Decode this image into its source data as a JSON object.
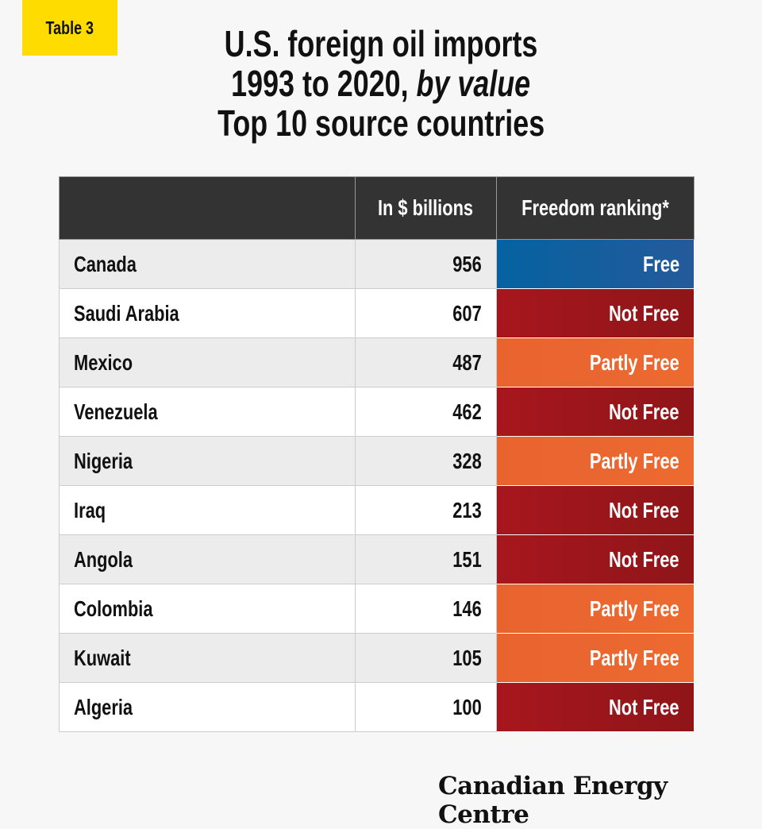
{
  "badge": "Table 3",
  "title": {
    "line1": "U.S. foreign oil imports",
    "line2_plain": "1993 to 2020, ",
    "line2_italic": "by value",
    "line3": "Top 10 source countries"
  },
  "colors": {
    "Free": "#0b5f9f",
    "Not Free": "#a3171d",
    "Partly Free": "#e9632f",
    "header": "#333333",
    "badge": "#fedc00"
  },
  "chart_data": {
    "type": "table",
    "columns": [
      "",
      "In $ billions",
      "Freedom ranking*"
    ],
    "rows": [
      {
        "country": "Canada",
        "value": "956",
        "ranking": "Free"
      },
      {
        "country": "Saudi Arabia",
        "value": "607",
        "ranking": "Not Free"
      },
      {
        "country": "Mexico",
        "value": "487",
        "ranking": "Partly Free"
      },
      {
        "country": "Venezuela",
        "value": "462",
        "ranking": "Not Free"
      },
      {
        "country": "Nigeria",
        "value": "328",
        "ranking": "Partly Free"
      },
      {
        "country": "Iraq",
        "value": "213",
        "ranking": "Not Free"
      },
      {
        "country": "Angola",
        "value": "151",
        "ranking": "Not Free"
      },
      {
        "country": "Colombia",
        "value": "146",
        "ranking": "Partly Free"
      },
      {
        "country": "Kuwait",
        "value": "105",
        "ranking": "Partly Free"
      },
      {
        "country": "Algeria",
        "value": "100",
        "ranking": "Not Free"
      }
    ]
  },
  "logo": "Canadian Energy Centre"
}
